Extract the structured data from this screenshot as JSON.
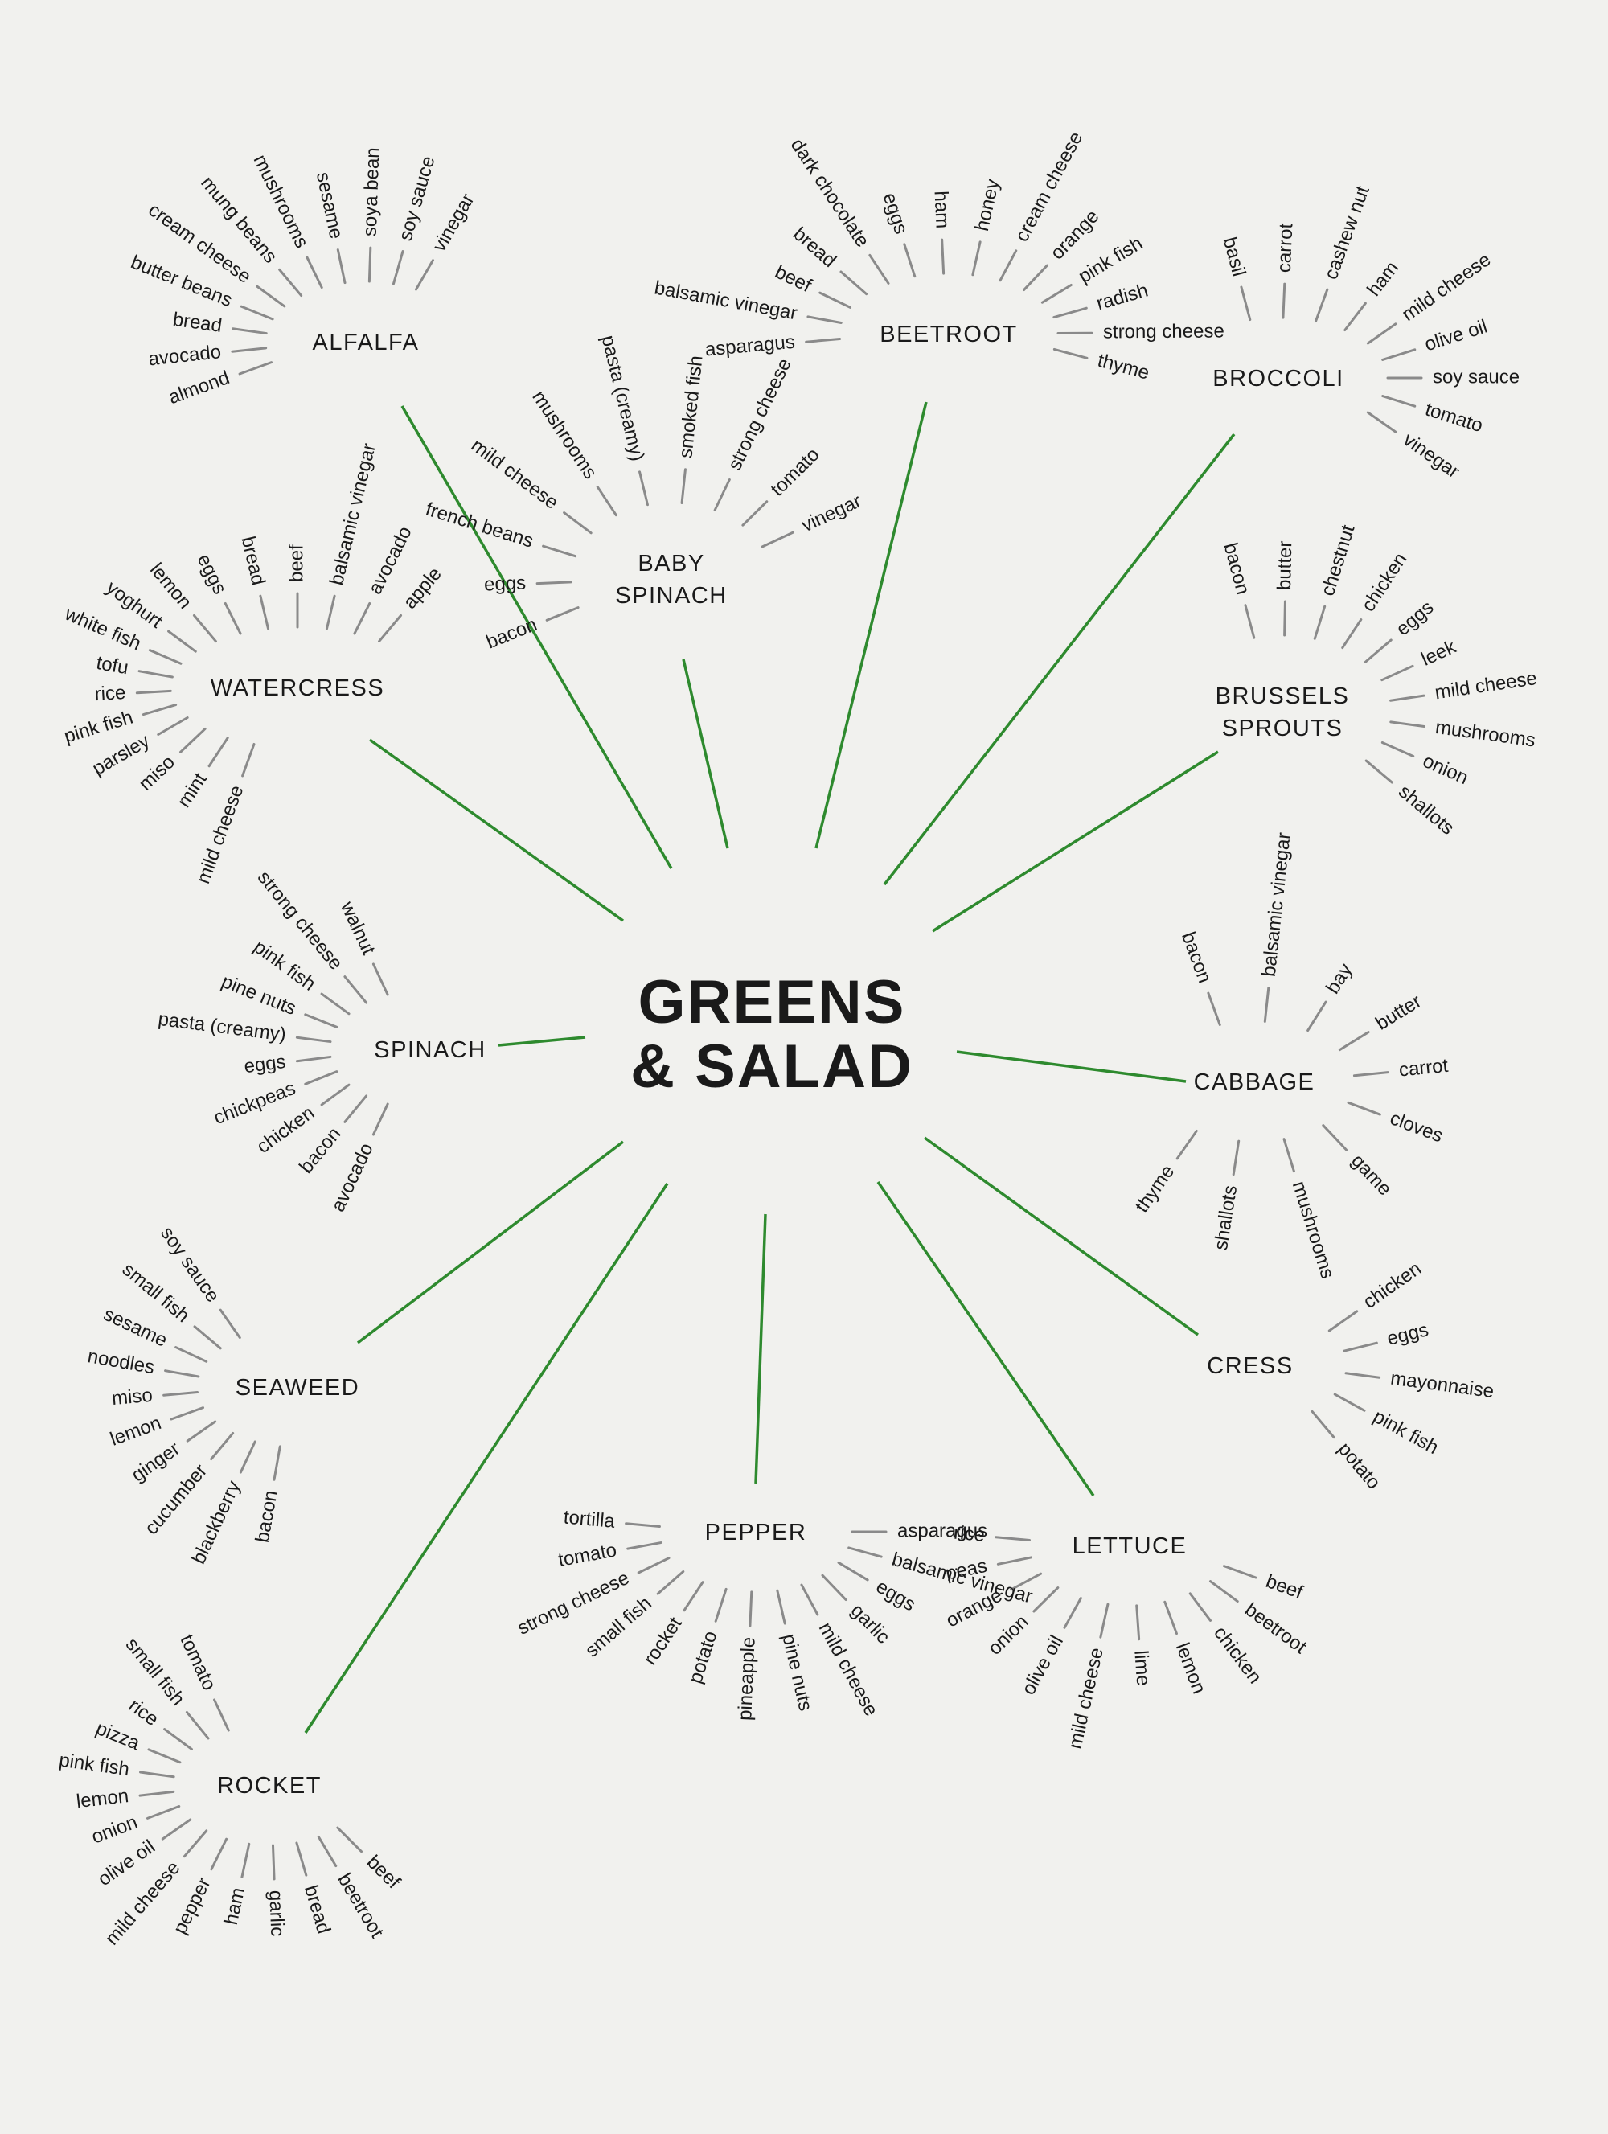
{
  "center": {
    "line1": "GREENS",
    "line2": "& SALAD"
  },
  "spoke_color": "#2e8a2e",
  "tick_color": "#8a8a8a",
  "nodes": [
    {
      "id": "alfalfa",
      "lines": [
        "ALFALFA"
      ],
      "pairings": [
        "almond",
        "avocado",
        "bread",
        "butter beans",
        "cream cheese",
        "mung beans",
        "mushrooms",
        "sesame",
        "soya bean",
        "soy sauce",
        "vinegar"
      ]
    },
    {
      "id": "baby-spinach",
      "lines": [
        "BABY",
        "SPINACH"
      ],
      "pairings": [
        "bacon",
        "eggs",
        "french beans",
        "mild cheese",
        "mushrooms",
        "pasta (creamy)",
        "smoked fish",
        "strong cheese",
        "tomato",
        "vinegar"
      ]
    },
    {
      "id": "beetroot",
      "lines": [
        "BEETROOT"
      ],
      "pairings": [
        "asparagus",
        "balsamic vinegar",
        "beef",
        "bread",
        "dark chocolate",
        "eggs",
        "ham",
        "honey",
        "cream cheese",
        "orange",
        "pink fish",
        "radish",
        "strong cheese",
        "thyme"
      ]
    },
    {
      "id": "broccoli",
      "lines": [
        "BROCCOLI"
      ],
      "pairings": [
        "basil",
        "carrot",
        "cashew nut",
        "ham",
        "mild cheese",
        "olive oil",
        "soy sauce",
        "tomato",
        "vinegar"
      ]
    },
    {
      "id": "watercress",
      "lines": [
        "WATERCRESS"
      ],
      "pairings": [
        "mild cheese",
        "mint",
        "miso",
        "parsley",
        "pink fish",
        "rice",
        "tofu",
        "white fish",
        "yoghurt",
        "lemon",
        "eggs",
        "bread",
        "beef",
        "balsamic vinegar",
        "avocado",
        "apple"
      ]
    },
    {
      "id": "brussels-sprouts",
      "lines": [
        "BRUSSELS",
        "SPROUTS"
      ],
      "pairings": [
        "bacon",
        "butter",
        "chestnut",
        "chicken",
        "eggs",
        "leek",
        "mild cheese",
        "mushrooms",
        "onion",
        "shallots"
      ]
    },
    {
      "id": "spinach",
      "lines": [
        "SPINACH"
      ],
      "pairings": [
        "avocado",
        "bacon",
        "chicken",
        "chickpeas",
        "eggs",
        "pasta (creamy)",
        "pine nuts",
        "pink fish",
        "strong cheese",
        "walnut"
      ]
    },
    {
      "id": "cabbage",
      "lines": [
        "CABBAGE"
      ],
      "pairings": [
        "bacon",
        "balsamic vinegar",
        "bay",
        "butter",
        "carrot",
        "cloves",
        "game",
        "mushrooms",
        "shallots",
        "thyme"
      ]
    },
    {
      "id": "seaweed",
      "lines": [
        "SEAWEED"
      ],
      "pairings": [
        "bacon",
        "blackberry",
        "cucumber",
        "ginger",
        "lemon",
        "miso",
        "noodles",
        "sesame",
        "small fish",
        "soy sauce"
      ]
    },
    {
      "id": "cress",
      "lines": [
        "CRESS"
      ],
      "pairings": [
        "chicken",
        "eggs",
        "mayonnaise",
        "pink fish",
        "potato"
      ]
    },
    {
      "id": "pepper",
      "lines": [
        "PEPPER"
      ],
      "pairings": [
        "asparagus",
        "balsamic vinegar",
        "eggs",
        "garlic",
        "mild cheese",
        "pine nuts",
        "pineapple",
        "potato",
        "rocket",
        "small fish",
        "strong cheese",
        "tomato",
        "tortilla"
      ]
    },
    {
      "id": "lettuce",
      "lines": [
        "LETTUCE"
      ],
      "pairings": [
        "beef",
        "beetroot",
        "chicken",
        "lemon",
        "lime",
        "mild cheese",
        "olive oil",
        "onion",
        "orange",
        "peas",
        "rice"
      ]
    },
    {
      "id": "rocket",
      "lines": [
        "ROCKET"
      ],
      "pairings": [
        "beef",
        "beetroot",
        "bread",
        "garlic",
        "ham",
        "pepper",
        "mild cheese",
        "olive oil",
        "onion",
        "lemon",
        "pink fish",
        "pizza",
        "rice",
        "small fish",
        "tomato"
      ]
    }
  ]
}
